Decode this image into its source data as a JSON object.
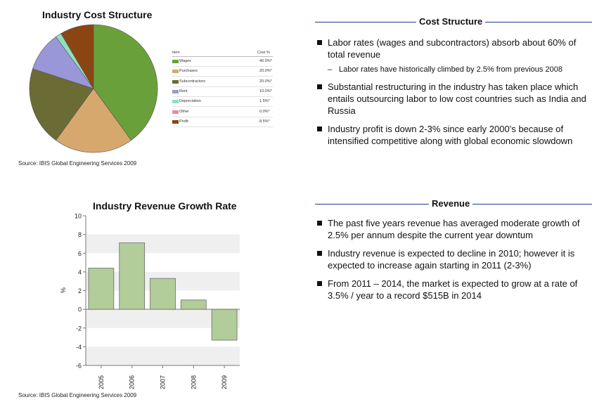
{
  "chart_data": [
    {
      "type": "pie",
      "title": "Industry Cost Structure",
      "legend_header": {
        "item": "Item",
        "pct": "Cost %"
      },
      "slices": [
        {
          "label": "Wages",
          "pct_text": "40.0%*",
          "value": 40.0,
          "color": "#6aa03a"
        },
        {
          "label": "Purchases",
          "pct_text": "20.0%*",
          "value": 20.0,
          "color": "#d7a86e"
        },
        {
          "label": "Subcontractors",
          "pct_text": "20.0%*",
          "value": 20.0,
          "color": "#6b6b35"
        },
        {
          "label": "Rent",
          "pct_text": "10.0%*",
          "value": 10.0,
          "color": "#9a97d8"
        },
        {
          "label": "Depreciation",
          "pct_text": "1.5%*",
          "value": 1.5,
          "color": "#8fe0c0"
        },
        {
          "label": "Other",
          "pct_text": "0.0%*",
          "value": 0.0,
          "color": "#e88ca0"
        },
        {
          "label": "Profit",
          "pct_text": "8.5%*",
          "value": 8.5,
          "color": "#8b4513"
        }
      ],
      "source": "Source: IBIS Global Engineering Services 2009"
    },
    {
      "type": "bar",
      "title": "Industry Revenue Growth Rate",
      "categories": [
        "2005",
        "2006",
        "2007",
        "2008",
        "2009"
      ],
      "values": [
        4.4,
        7.1,
        3.3,
        1.0,
        -3.3
      ],
      "ylabel": "%",
      "ylim": [
        -6,
        10
      ],
      "yticks": [
        "10",
        "8",
        "6",
        "4",
        "2",
        "0",
        "-2",
        "-4",
        "-6"
      ],
      "bar_color": "#b2cc9a",
      "grid": "horizontal bands",
      "source": "Source: IBIS Global Engineering Services 2009"
    }
  ],
  "cost_section": {
    "heading": "Cost Structure",
    "bullets": [
      {
        "text": "Labor rates (wages and subcontractors) absorb about 60% of total revenue",
        "sub": "Labor rates have historically climbed by 2.5% from previous 2008"
      },
      {
        "text": "Substantial restructuring in the industry has taken place which entails outsourcing labor to low cost countries such as India and Russia"
      },
      {
        "text": "Industry profit is down 2-3% since early 2000’s because of intensified competitive along with global economic slowdown"
      }
    ]
  },
  "revenue_section": {
    "heading": "Revenue",
    "bullets": [
      {
        "text": "The past five years revenue has averaged moderate growth of 2.5% per annum despite the current year downtum"
      },
      {
        "text": "Industry revenue is expected to decline in 2010; however it is expected to increase again starting in 2011 (2-3%)"
      },
      {
        "text": "From 2011 – 2014, the market is expected to grow at a rate of  3.5% / year to a record $515B in 2014"
      }
    ]
  }
}
